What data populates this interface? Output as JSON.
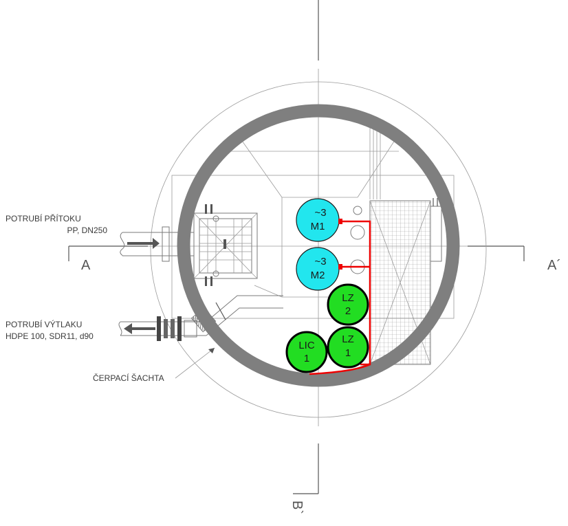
{
  "labels": {
    "inflow_line1": "POTRUBÍ PŘÍTOKU",
    "inflow_line2": "PP, DN250",
    "outflow_line1": "POTRUBÍ VÝTLAKU",
    "outflow_line2": "HDPE 100, SDR11, d90",
    "shaft": "ČERPACÍ ŠACHTA"
  },
  "sections": {
    "a_left": "A",
    "a_right": "A´",
    "b_bottom": "B`"
  },
  "equipment": {
    "m1": {
      "line1": "~3",
      "line2": "M1"
    },
    "m2": {
      "line1": "~3",
      "line2": "M2"
    },
    "lz2": {
      "line1": "LZ",
      "line2": "2"
    },
    "lz1": {
      "line1": "LZ",
      "line2": "1"
    },
    "lic1": {
      "line1": "LIC",
      "line2": "1"
    }
  },
  "colors": {
    "motor": "#22e6ee",
    "level": "#22dd22",
    "wiring": "#ee0000",
    "ring": "#7f7f7f"
  }
}
